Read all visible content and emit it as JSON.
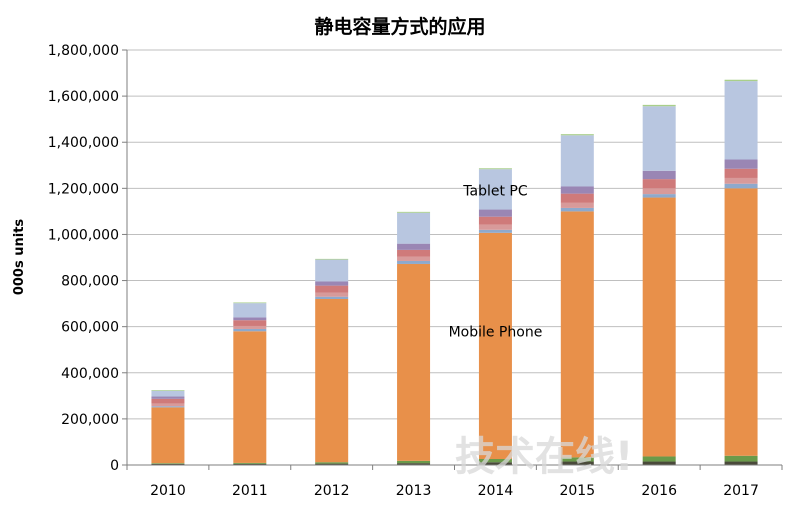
{
  "colors": {
    "base_dark": "#4a4a3a",
    "base_green": "#6a9a4a",
    "mobile_phone": "#e8904a",
    "thin_blue": "#8ea9cc",
    "thin_pink": "#d89a9a",
    "band_red": "#cf7a7a",
    "band_purple": "#9a86b4",
    "tablet_pc": "#b8c6e0",
    "top_green": "#a9cf8a",
    "axis": "#7f7f7f",
    "grid": "#bfbfbf"
  },
  "chart_data": {
    "type": "bar",
    "stacked": true,
    "title": "静电容量方式的应用",
    "ylabel": "000s units",
    "xlabel": "",
    "ylim": [
      0,
      1800000
    ],
    "yticks": [
      0,
      200000,
      400000,
      600000,
      800000,
      1000000,
      1200000,
      1400000,
      1600000,
      1800000
    ],
    "ytick_labels": [
      "0",
      "200,000",
      "400,000",
      "600,000",
      "800,000",
      "1,000,000",
      "1,200,000",
      "1,400,000",
      "1,600,000",
      "1,800,000"
    ],
    "categories": [
      "2010",
      "2011",
      "2012",
      "2013",
      "2014",
      "2015",
      "2016",
      "2017"
    ],
    "grid": true,
    "legend": "none",
    "series": [
      {
        "key": "base_dark",
        "values": [
          5000,
          5000,
          6000,
          8000,
          12000,
          15000,
          15000,
          15000
        ]
      },
      {
        "key": "base_green",
        "values": [
          3000,
          4000,
          6000,
          10000,
          14000,
          18000,
          22000,
          25000
        ]
      },
      {
        "name": "Mobile Phone",
        "key": "mobile_phone",
        "values": [
          242000,
          571000,
          708000,
          854000,
          981000,
          1067000,
          1123000,
          1160000
        ]
      },
      {
        "key": "thin_blue",
        "values": [
          5000,
          10000,
          10000,
          13000,
          13000,
          15000,
          15000,
          20000
        ]
      },
      {
        "key": "thin_pink",
        "values": [
          12000,
          13000,
          18000,
          18000,
          22000,
          22000,
          25000,
          25000
        ]
      },
      {
        "key": "band_red",
        "values": [
          20000,
          25000,
          30000,
          30000,
          35000,
          40000,
          40000,
          40000
        ]
      },
      {
        "key": "band_purple",
        "values": [
          10000,
          12000,
          18000,
          27000,
          31000,
          31000,
          36000,
          40000
        ]
      },
      {
        "name": "Tablet PC",
        "key": "tablet_pc",
        "values": [
          25000,
          62000,
          95000,
          134000,
          175000,
          222000,
          280000,
          340000
        ]
      },
      {
        "key": "top_green",
        "values": [
          3000,
          3000,
          3000,
          4000,
          4000,
          5000,
          6000,
          6000
        ]
      }
    ],
    "annotations": [
      {
        "text": "Tablet PC",
        "category": "2014",
        "value": 1190000
      },
      {
        "text": "Mobile Phone",
        "category": "2014",
        "value": 580000
      }
    ]
  },
  "watermark": "技术在线!"
}
